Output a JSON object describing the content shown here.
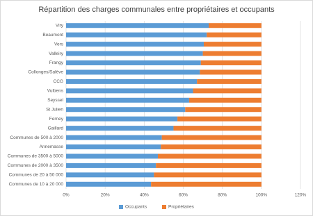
{
  "chart_data": {
    "type": "stacked-bar-horizontal",
    "title": "Répartition des charges communales entre propriétaires et occupants",
    "categories": [
      "Viry",
      "Beaumont",
      "Vers",
      "Valleiry",
      "Frangy",
      "Collonges/Salève",
      "CCG",
      "Vulbens",
      "Seyssel",
      "St Julien",
      "Ferney",
      "Gaillard",
      "Communes de 500 à 2000",
      "Annemasse",
      "Communes de 3500 à 5000",
      "Communes de 2000 à 3500",
      "Communes de 20 à 50 000",
      "Communes de 10 à 20 000"
    ],
    "series": [
      {
        "name": "Occupants",
        "color": "#5b9bd5",
        "values": [
          73,
          72,
          70.5,
          70,
          69,
          68.5,
          67,
          65,
          63,
          61,
          57,
          55,
          49,
          48.5,
          47,
          46,
          45,
          43.5
        ]
      },
      {
        "name": "Propriétaires",
        "color": "#ed7d31",
        "values": [
          27,
          28,
          29.5,
          30,
          31,
          31.5,
          33,
          35,
          37,
          39,
          43,
          45,
          51,
          51.5,
          53,
          54,
          55,
          56.5
        ]
      }
    ],
    "xlim": [
      0,
      120
    ],
    "xticks": [
      {
        "value": 0,
        "label": "0%"
      },
      {
        "value": 20,
        "label": "20%"
      },
      {
        "value": 40,
        "label": "40%"
      },
      {
        "value": 60,
        "label": "60%"
      },
      {
        "value": 80,
        "label": "80%"
      },
      {
        "value": 100,
        "label": "100%"
      },
      {
        "value": 120,
        "label": "120%"
      }
    ],
    "grid": true,
    "legend": "bottom"
  }
}
